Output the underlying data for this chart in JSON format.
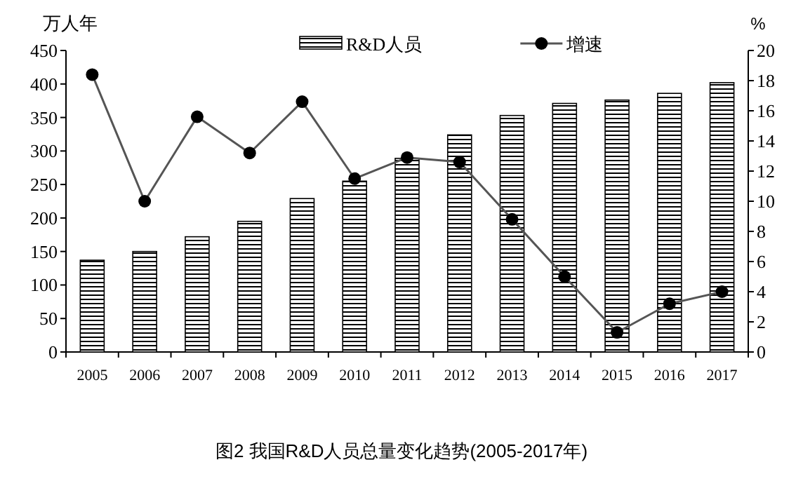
{
  "chart_data": {
    "type": "bar",
    "categories": [
      "2005",
      "2006",
      "2007",
      "2008",
      "2009",
      "2010",
      "2011",
      "2012",
      "2013",
      "2014",
      "2015",
      "2016",
      "2017"
    ],
    "series": [
      {
        "name": "R&D人员",
        "color": "#000000",
        "values": [
          137,
          150,
          172,
          195,
          229,
          255,
          289,
          324,
          353,
          371,
          376,
          386,
          402
        ]
      },
      {
        "name": "增速",
        "type": "line",
        "axis": "y2",
        "color": "#555555",
        "values": [
          18.4,
          10.0,
          15.6,
          13.2,
          16.6,
          11.5,
          12.9,
          12.6,
          8.8,
          5.0,
          1.3,
          3.2,
          4.0
        ]
      }
    ],
    "ylabel": "万人年",
    "y2label": "%",
    "ylim": [
      0,
      450
    ],
    "yticks": [
      0,
      50,
      100,
      150,
      200,
      250,
      300,
      350,
      400,
      450
    ],
    "y2lim": [
      0,
      20
    ],
    "y2ticks": [
      0,
      2,
      4,
      6,
      8,
      10,
      12,
      14,
      16,
      18,
      20
    ],
    "legend": "top",
    "marker": "circle",
    "grid": false,
    "annotations": [
      "图2 我国R&D人员总量变化趋势(2005-2017年)"
    ]
  }
}
